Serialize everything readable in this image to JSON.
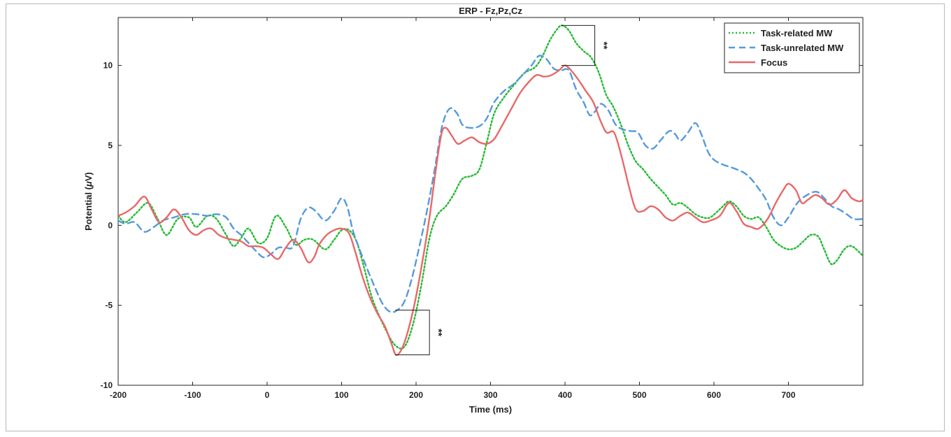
{
  "chart_data": {
    "type": "line",
    "title": "ERP - Fz,Pz,Cz",
    "xlabel": "Time (ms)",
    "ylabel": "Potential (",
    "ylabel_mu": "μ",
    "ylabel_end": "V)",
    "xlim": [
      -200,
      800
    ],
    "ylim": [
      -10,
      13
    ],
    "xticks": [
      -200,
      -100,
      0,
      100,
      200,
      300,
      400,
      500,
      600,
      700
    ],
    "yticks": [
      -10,
      -5,
      0,
      5,
      10
    ],
    "grid": false,
    "legend_position": "top-right",
    "series": [
      {
        "name": "Task-related MW",
        "color": "#22bb33",
        "style": "dotted",
        "points": [
          [
            -200,
            0.6
          ],
          [
            -190,
            0.2
          ],
          [
            -175,
            0.8
          ],
          [
            -160,
            1.4
          ],
          [
            -148,
            0.5
          ],
          [
            -135,
            -0.6
          ],
          [
            -120,
            0.4
          ],
          [
            -105,
            0.5
          ],
          [
            -95,
            -0.1
          ],
          [
            -80,
            0.6
          ],
          [
            -68,
            0.4
          ],
          [
            -55,
            -0.6
          ],
          [
            -45,
            -1.3
          ],
          [
            -35,
            -0.8
          ],
          [
            -25,
            -0.2
          ],
          [
            -12,
            -1.1
          ],
          [
            0,
            -0.8
          ],
          [
            12,
            0.6
          ],
          [
            25,
            -0.1
          ],
          [
            38,
            -1.2
          ],
          [
            50,
            -0.9
          ],
          [
            62,
            -0.9
          ],
          [
            78,
            -1.5
          ],
          [
            90,
            -0.9
          ],
          [
            100,
            -0.3
          ],
          [
            110,
            -0.3
          ],
          [
            120,
            -1.0
          ],
          [
            130,
            -2.6
          ],
          [
            140,
            -4.4
          ],
          [
            150,
            -5.6
          ],
          [
            160,
            -6.6
          ],
          [
            170,
            -7.4
          ],
          [
            180,
            -7.7
          ],
          [
            188,
            -7.3
          ],
          [
            198,
            -5.8
          ],
          [
            208,
            -3.5
          ],
          [
            218,
            -0.8
          ],
          [
            228,
            0.6
          ],
          [
            240,
            1.2
          ],
          [
            250,
            1.9
          ],
          [
            262,
            2.9
          ],
          [
            275,
            3.1
          ],
          [
            285,
            3.5
          ],
          [
            295,
            5.2
          ],
          [
            305,
            7.0
          ],
          [
            318,
            8.0
          ],
          [
            330,
            8.7
          ],
          [
            345,
            9.5
          ],
          [
            360,
            9.9
          ],
          [
            370,
            10.6
          ],
          [
            380,
            11.6
          ],
          [
            390,
            12.3
          ],
          [
            396,
            12.5
          ],
          [
            405,
            12.2
          ],
          [
            415,
            11.4
          ],
          [
            425,
            10.9
          ],
          [
            435,
            10.5
          ],
          [
            445,
            9.6
          ],
          [
            455,
            8.2
          ],
          [
            465,
            7.4
          ],
          [
            475,
            6.3
          ],
          [
            485,
            5.0
          ],
          [
            495,
            4.0
          ],
          [
            505,
            3.5
          ],
          [
            515,
            2.9
          ],
          [
            525,
            2.4
          ],
          [
            535,
            1.9
          ],
          [
            545,
            1.3
          ],
          [
            555,
            1.4
          ],
          [
            565,
            1.1
          ],
          [
            575,
            0.7
          ],
          [
            585,
            0.5
          ],
          [
            595,
            0.5
          ],
          [
            610,
            1.1
          ],
          [
            620,
            1.5
          ],
          [
            630,
            1.2
          ],
          [
            640,
            0.6
          ],
          [
            650,
            0.4
          ],
          [
            660,
            0.5
          ],
          [
            670,
            -0.1
          ],
          [
            680,
            -0.9
          ],
          [
            690,
            -1.3
          ],
          [
            700,
            -1.5
          ],
          [
            710,
            -1.4
          ],
          [
            720,
            -1.0
          ],
          [
            730,
            -0.6
          ],
          [
            740,
            -0.7
          ],
          [
            748,
            -1.5
          ],
          [
            757,
            -2.4
          ],
          [
            765,
            -2.2
          ],
          [
            775,
            -1.5
          ],
          [
            785,
            -1.3
          ],
          [
            800,
            -1.9
          ]
        ]
      },
      {
        "name": "Task-unrelated MW",
        "color": "#5599dd",
        "style": "dashed",
        "points": [
          [
            -200,
            0.3
          ],
          [
            -190,
            0.1
          ],
          [
            -178,
            0.2
          ],
          [
            -165,
            -0.4
          ],
          [
            -152,
            -0.1
          ],
          [
            -140,
            0.3
          ],
          [
            -125,
            0.5
          ],
          [
            -110,
            0.7
          ],
          [
            -95,
            0.7
          ],
          [
            -80,
            0.6
          ],
          [
            -68,
            0.7
          ],
          [
            -55,
            0.5
          ],
          [
            -45,
            -0.2
          ],
          [
            -35,
            -0.6
          ],
          [
            -25,
            -1.1
          ],
          [
            -15,
            -1.6
          ],
          [
            -5,
            -2.0
          ],
          [
            5,
            -1.8
          ],
          [
            15,
            -1.4
          ],
          [
            25,
            -1.4
          ],
          [
            35,
            -1.3
          ],
          [
            45,
            0.4
          ],
          [
            55,
            1.1
          ],
          [
            65,
            0.9
          ],
          [
            78,
            0.3
          ],
          [
            90,
            0.9
          ],
          [
            100,
            1.7
          ],
          [
            108,
            1.1
          ],
          [
            115,
            -0.3
          ],
          [
            125,
            -1.6
          ],
          [
            135,
            -2.8
          ],
          [
            145,
            -3.9
          ],
          [
            155,
            -4.9
          ],
          [
            165,
            -5.4
          ],
          [
            175,
            -5.3
          ],
          [
            185,
            -4.7
          ],
          [
            195,
            -3.2
          ],
          [
            205,
            -1.2
          ],
          [
            215,
            1.0
          ],
          [
            225,
            3.5
          ],
          [
            235,
            6.2
          ],
          [
            245,
            7.3
          ],
          [
            255,
            7.0
          ],
          [
            262,
            6.3
          ],
          [
            272,
            6.1
          ],
          [
            285,
            6.2
          ],
          [
            295,
            6.7
          ],
          [
            305,
            7.7
          ],
          [
            318,
            8.4
          ],
          [
            330,
            8.8
          ],
          [
            345,
            9.5
          ],
          [
            355,
            10.0
          ],
          [
            365,
            10.6
          ],
          [
            375,
            10.4
          ],
          [
            385,
            9.8
          ],
          [
            395,
            9.7
          ],
          [
            405,
            9.7
          ],
          [
            415,
            8.5
          ],
          [
            425,
            7.7
          ],
          [
            433,
            6.9
          ],
          [
            440,
            7.1
          ],
          [
            448,
            7.6
          ],
          [
            458,
            7.2
          ],
          [
            468,
            6.3
          ],
          [
            478,
            6.0
          ],
          [
            488,
            5.9
          ],
          [
            498,
            5.8
          ],
          [
            508,
            5.0
          ],
          [
            518,
            4.8
          ],
          [
            528,
            5.3
          ],
          [
            540,
            5.9
          ],
          [
            548,
            5.7
          ],
          [
            555,
            5.3
          ],
          [
            565,
            5.8
          ],
          [
            575,
            6.4
          ],
          [
            583,
            5.7
          ],
          [
            592,
            4.6
          ],
          [
            600,
            4.1
          ],
          [
            612,
            3.8
          ],
          [
            625,
            3.6
          ],
          [
            640,
            3.3
          ],
          [
            650,
            2.9
          ],
          [
            660,
            2.3
          ],
          [
            670,
            1.6
          ],
          [
            680,
            0.5
          ],
          [
            690,
            0.0
          ],
          [
            700,
            0.5
          ],
          [
            712,
            1.4
          ],
          [
            725,
            1.9
          ],
          [
            738,
            2.1
          ],
          [
            748,
            1.7
          ],
          [
            758,
            1.2
          ],
          [
            768,
            1.0
          ],
          [
            778,
            0.7
          ],
          [
            788,
            0.4
          ],
          [
            800,
            0.4
          ]
        ]
      },
      {
        "name": "Focus",
        "color": "#e86868",
        "style": "solid",
        "points": [
          [
            -200,
            0.6
          ],
          [
            -190,
            0.8
          ],
          [
            -178,
            1.2
          ],
          [
            -165,
            1.8
          ],
          [
            -155,
            1.0
          ],
          [
            -145,
            0.2
          ],
          [
            -135,
            0.5
          ],
          [
            -125,
            1.0
          ],
          [
            -115,
            0.5
          ],
          [
            -105,
            -0.3
          ],
          [
            -95,
            -0.6
          ],
          [
            -85,
            -0.3
          ],
          [
            -75,
            -0.2
          ],
          [
            -65,
            -0.6
          ],
          [
            -55,
            -0.8
          ],
          [
            -45,
            -0.9
          ],
          [
            -35,
            -1.0
          ],
          [
            -25,
            -1.3
          ],
          [
            -15,
            -1.3
          ],
          [
            -5,
            -1.4
          ],
          [
            5,
            -1.8
          ],
          [
            15,
            -2.1
          ],
          [
            25,
            -1.4
          ],
          [
            35,
            -0.9
          ],
          [
            45,
            -1.4
          ],
          [
            55,
            -2.3
          ],
          [
            63,
            -2.0
          ],
          [
            70,
            -1.2
          ],
          [
            80,
            -0.6
          ],
          [
            90,
            -0.3
          ],
          [
            100,
            -0.2
          ],
          [
            110,
            -0.5
          ],
          [
            118,
            -1.6
          ],
          [
            128,
            -3.2
          ],
          [
            138,
            -4.5
          ],
          [
            148,
            -5.5
          ],
          [
            158,
            -6.3
          ],
          [
            167,
            -7.4
          ],
          [
            173,
            -8.1
          ],
          [
            180,
            -7.8
          ],
          [
            188,
            -6.8
          ],
          [
            198,
            -4.9
          ],
          [
            208,
            -2.4
          ],
          [
            218,
            0.5
          ],
          [
            226,
            3.3
          ],
          [
            234,
            5.7
          ],
          [
            240,
            6.1
          ],
          [
            248,
            5.6
          ],
          [
            256,
            5.1
          ],
          [
            265,
            5.3
          ],
          [
            275,
            5.5
          ],
          [
            285,
            5.2
          ],
          [
            295,
            5.1
          ],
          [
            305,
            5.4
          ],
          [
            315,
            6.2
          ],
          [
            328,
            7.3
          ],
          [
            340,
            8.3
          ],
          [
            352,
            9.0
          ],
          [
            362,
            9.4
          ],
          [
            372,
            9.3
          ],
          [
            382,
            9.4
          ],
          [
            392,
            9.7
          ],
          [
            400,
            10.0
          ],
          [
            408,
            9.7
          ],
          [
            418,
            9.1
          ],
          [
            428,
            8.4
          ],
          [
            438,
            7.7
          ],
          [
            448,
            6.5
          ],
          [
            456,
            5.8
          ],
          [
            466,
            5.8
          ],
          [
            476,
            4.3
          ],
          [
            486,
            2.4
          ],
          [
            495,
            1.0
          ],
          [
            505,
            0.9
          ],
          [
            515,
            1.2
          ],
          [
            525,
            1.0
          ],
          [
            535,
            0.5
          ],
          [
            545,
            0.3
          ],
          [
            555,
            0.6
          ],
          [
            565,
            0.8
          ],
          [
            575,
            0.5
          ],
          [
            585,
            0.2
          ],
          [
            595,
            0.3
          ],
          [
            608,
            0.6
          ],
          [
            620,
            1.4
          ],
          [
            630,
            0.9
          ],
          [
            640,
            0.1
          ],
          [
            650,
            -0.1
          ],
          [
            660,
            -0.2
          ],
          [
            672,
            0.4
          ],
          [
            683,
            1.4
          ],
          [
            693,
            2.2
          ],
          [
            700,
            2.6
          ],
          [
            710,
            2.2
          ],
          [
            718,
            1.4
          ],
          [
            726,
            1.6
          ],
          [
            736,
            1.9
          ],
          [
            745,
            1.7
          ],
          [
            755,
            1.3
          ],
          [
            765,
            1.6
          ],
          [
            775,
            2.2
          ],
          [
            785,
            1.7
          ],
          [
            795,
            1.5
          ],
          [
            800,
            1.6
          ]
        ]
      }
    ],
    "annotations": [
      {
        "label": "**",
        "x_start": 395,
        "x_end": 440,
        "y_top": 12.5,
        "y_bottom": 10.0
      },
      {
        "label": "**",
        "x_start": 172,
        "x_end": 218,
        "y_top": -5.3,
        "y_bottom": -8.1
      }
    ]
  }
}
